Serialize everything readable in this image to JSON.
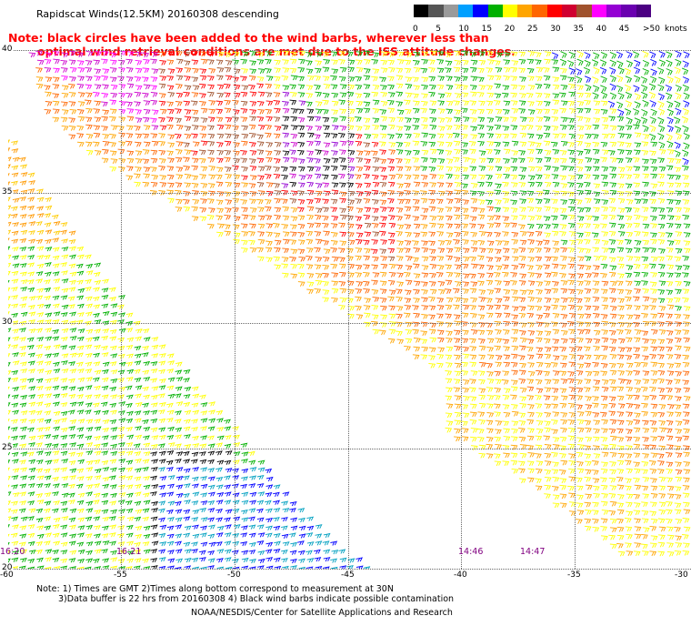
{
  "title": "Rapidscat Winds(12.5KM) 20160308 descending",
  "note_line1": "Note: black circles have been added to the wind barbs, wherever less than",
  "note_line2": "optimal wind retrieval conditions are met due to the ISS attitude changes.",
  "colorbar": {
    "unit": "knots",
    "labels": [
      "0",
      "5",
      "10",
      "15",
      "20",
      "25",
      "30",
      "35",
      "40",
      "45",
      ">50"
    ],
    "unit_label": "knots",
    "colors": [
      "#000000",
      "#555555",
      "#9a9a9a",
      "#00a0ff",
      "#0000ff",
      "#00b000",
      "#ffff00",
      "#ffa500",
      "#ff6600",
      "#ff0000",
      "#d00030",
      "#a0522d",
      "#ff00ff",
      "#9400d3",
      "#6a00b0",
      "#4b0082"
    ]
  },
  "latitudes": [
    "40",
    "35",
    "30",
    "25",
    "20"
  ],
  "longitudes": [
    "-60",
    "-55",
    "-50",
    "-45",
    "-40",
    "-35",
    "-30"
  ],
  "times": [
    "16:20",
    "16:21",
    "14:46",
    "14:47"
  ],
  "footer_line1": "Note: 1) Times are GMT 2)Times along bottom correspond to measurement at 30N",
  "footer_line2": "3)Data buffer is 22 hrs from 20160308 4) Black wind barbs indicate possible contamination",
  "credit": "NOAA/NESDIS/Center for Satellite Applications and Research",
  "swaths": [
    {
      "name": "swath-west",
      "color_hint": "green-yellow"
    },
    {
      "name": "swath-central",
      "color_hint": "red-purple-yellow"
    },
    {
      "name": "swath-east",
      "color_hint": "green-yellow"
    },
    {
      "name": "swath-northeast",
      "color_hint": "green-blue"
    }
  ]
}
